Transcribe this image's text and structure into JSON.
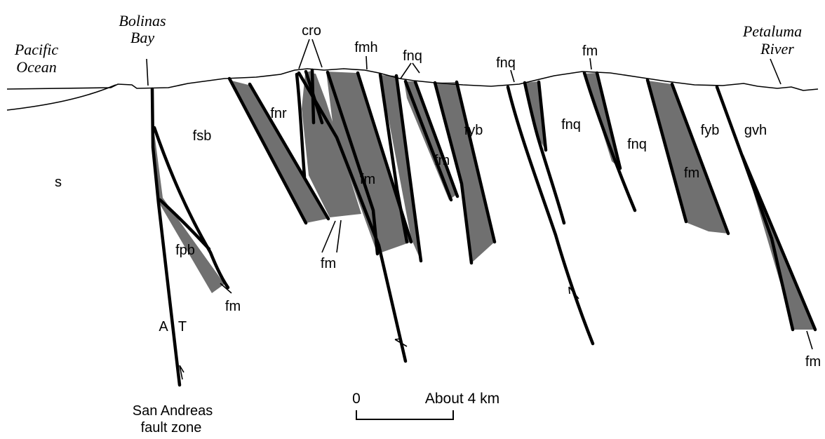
{
  "places": {
    "pacific_ocean": [
      "Pacific",
      "Ocean"
    ],
    "bolinas_bay": [
      "Bolinas",
      "Bay"
    ],
    "petaluma_river": [
      "Petaluma",
      "River"
    ]
  },
  "units": {
    "s": "s",
    "fsb": "fsb",
    "fnr": "fnr",
    "cro": "cro",
    "fmh": "fmh",
    "fnq_top1": "fnq",
    "fnq_top2": "fnq",
    "fm_top": "fm",
    "fyb_mid": "fyb",
    "fnq_mid1": "fnq",
    "fnq_mid2": "fnq",
    "fyb_right": "fyb",
    "gvh": "gvh",
    "fm_center": "fm",
    "fm_mid": "fm",
    "fm_right": "fm",
    "fm_bottom": "fm",
    "fpb": "fpb",
    "fm_fpb": "fm",
    "fm_far_right": "fm"
  },
  "fault_zone": {
    "a": "A",
    "t": "T",
    "label": [
      "San Andreas",
      "fault zone"
    ]
  },
  "scale": {
    "zero": "0",
    "label": "About 4 km"
  },
  "colors": {
    "unit_fill": "#707070",
    "line": "#000000",
    "background": "#ffffff"
  }
}
